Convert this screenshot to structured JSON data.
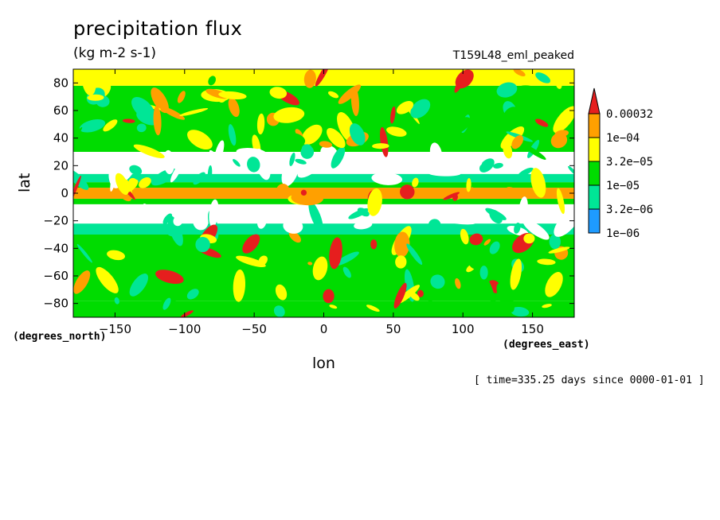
{
  "chart_data": {
    "type": "heatmap",
    "title": "precipitation flux",
    "units": "(kg m-2 s-1)",
    "experiment": "T159L48_eml_peaked",
    "xlabel": "lon",
    "ylabel": "lat",
    "x_units": "(degrees_east)",
    "y_units": "(degrees_north)",
    "xlim": [
      -180,
      180
    ],
    "ylim": [
      -90,
      90
    ],
    "x_ticks": [
      -150,
      -100,
      -50,
      0,
      50,
      100,
      150
    ],
    "y_ticks": [
      -80,
      -60,
      -40,
      -20,
      0,
      20,
      40,
      60,
      80
    ],
    "time_label": "[ time=335.25 days since 0000-01-01 ]",
    "grid": false,
    "colorbar": {
      "placement": "right",
      "labels": [
        "1e-06",
        "3.2e-06",
        "1e-05",
        "3.2e-05",
        "1e-04",
        "0.00032"
      ],
      "colors": [
        "#ffffff",
        "#1e9bff",
        "#00e696",
        "#00dc00",
        "#ffff00",
        "#ffa000",
        "#e61e1e"
      ]
    },
    "bands": [
      {
        "lat": [
          -90,
          -78
        ],
        "level": 3
      },
      {
        "lat": [
          -78,
          -60
        ],
        "level": 3
      },
      {
        "lat": [
          -60,
          -30
        ],
        "level": 3
      },
      {
        "lat": [
          -30,
          -22
        ],
        "level": 2
      },
      {
        "lat": [
          -22,
          -8
        ],
        "level": 0
      },
      {
        "lat": [
          -8,
          -4
        ],
        "level": 3
      },
      {
        "lat": [
          -4,
          4
        ],
        "level": 5
      },
      {
        "lat": [
          4,
          8
        ],
        "level": 3
      },
      {
        "lat": [
          8,
          14
        ],
        "level": 2
      },
      {
        "lat": [
          14,
          30
        ],
        "level": 0
      },
      {
        "lat": [
          30,
          60
        ],
        "level": 3
      },
      {
        "lat": [
          60,
          78
        ],
        "level": 3
      },
      {
        "lat": [
          78,
          90
        ],
        "level": 4
      }
    ]
  }
}
